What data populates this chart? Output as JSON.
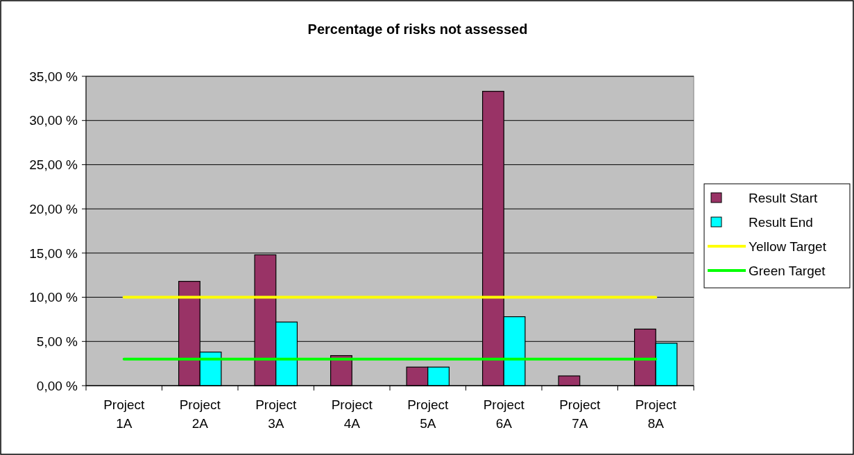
{
  "chart_data": {
    "type": "bar",
    "title": "Percentage of risks not assessed",
    "categories": [
      "Project 1A",
      "Project 2A",
      "Project 3A",
      "Project 4A",
      "Project 5A",
      "Project 6A",
      "Project 7A",
      "Project 8A"
    ],
    "series": [
      {
        "name": "Result Start",
        "color": "#993366",
        "values": [
          0,
          11.8,
          14.8,
          3.4,
          2.1,
          33.3,
          1.1,
          6.4
        ]
      },
      {
        "name": "Result End",
        "color": "#00ffff",
        "values": [
          0,
          3.8,
          7.2,
          0,
          2.1,
          7.8,
          0,
          4.8
        ]
      }
    ],
    "ref_lines": [
      {
        "axis": "y",
        "value": 10,
        "label": "Yellow Target",
        "color": "#ffff00"
      },
      {
        "axis": "y",
        "value": 3,
        "label": "Green Target",
        "color": "#00ff00"
      }
    ],
    "ylim": [
      0,
      35
    ],
    "yticks": [
      {
        "value": 0,
        "label": "0,00 %"
      },
      {
        "value": 5,
        "label": "5,00 %"
      },
      {
        "value": 10,
        "label": "10,00 %"
      },
      {
        "value": 15,
        "label": "15,00 %"
      },
      {
        "value": 20,
        "label": "20,00 %"
      },
      {
        "value": 25,
        "label": "25,00 %"
      },
      {
        "value": 30,
        "label": "30,00 %"
      },
      {
        "value": 35,
        "label": "35,00 %"
      }
    ],
    "grid": "y",
    "legend": "right"
  }
}
